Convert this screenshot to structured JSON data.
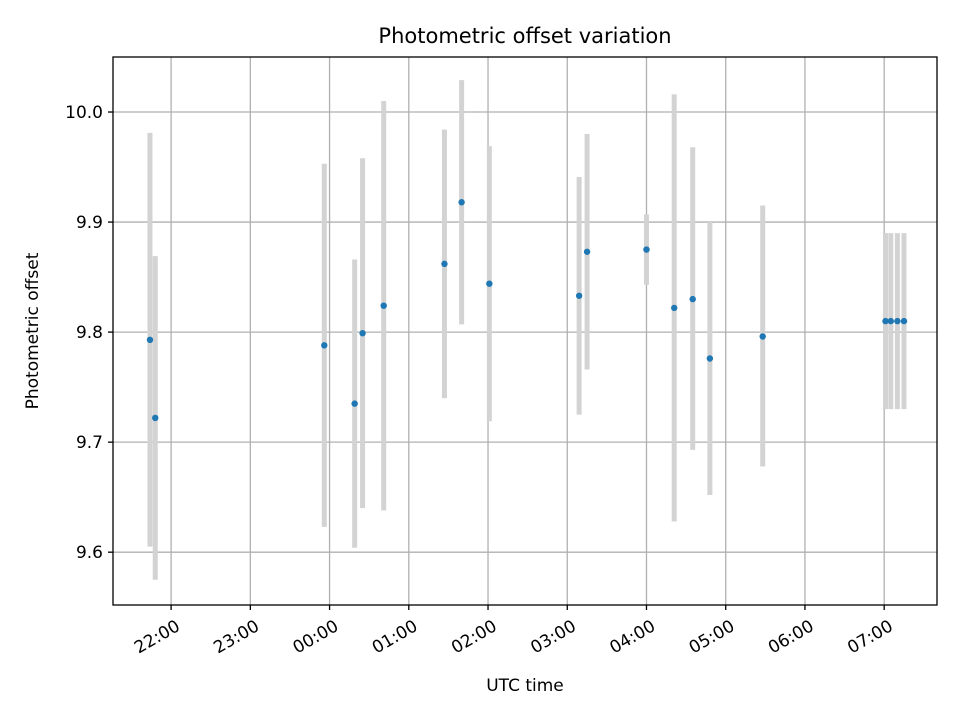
{
  "chart_data": {
    "type": "scatter",
    "title": "Photometric offset variation",
    "xlabel": "UTC time",
    "ylabel": "Photometric offset",
    "xlim": [
      "21:16",
      "31:40"
    ],
    "ylim": [
      9.552,
      10.05
    ],
    "grid": true,
    "x_ticks": [
      {
        "x": "22:00",
        "label": "22:00"
      },
      {
        "x": "23:00",
        "label": "23:00"
      },
      {
        "x": "24:00",
        "label": "00:00"
      },
      {
        "x": "25:00",
        "label": "01:00"
      },
      {
        "x": "26:00",
        "label": "02:00"
      },
      {
        "x": "27:00",
        "label": "03:00"
      },
      {
        "x": "28:00",
        "label": "04:00"
      },
      {
        "x": "29:00",
        "label": "05:00"
      },
      {
        "x": "30:00",
        "label": "06:00"
      },
      {
        "x": "31:00",
        "label": "07:00"
      }
    ],
    "y_ticks": [
      {
        "y": 9.6,
        "label": "9.6"
      },
      {
        "y": 9.7,
        "label": "9.7"
      },
      {
        "y": 9.8,
        "label": "9.8"
      },
      {
        "y": 9.9,
        "label": "9.9"
      },
      {
        "y": 10.0,
        "label": "10.0"
      }
    ],
    "marker_color": "#1f77b4",
    "errorbar_color": "#d3d3d3",
    "points": [
      {
        "x": "21:44",
        "y": 9.793,
        "y_low": 9.605,
        "y_high": 9.981
      },
      {
        "x": "21:48",
        "y": 9.722,
        "y_low": 9.575,
        "y_high": 9.869
      },
      {
        "x": "23:56",
        "y": 9.788,
        "y_low": 9.623,
        "y_high": 9.953
      },
      {
        "x": "24:19",
        "y": 9.735,
        "y_low": 9.604,
        "y_high": 9.866
      },
      {
        "x": "24:25",
        "y": 9.799,
        "y_low": 9.64,
        "y_high": 9.958
      },
      {
        "x": "24:41",
        "y": 9.824,
        "y_low": 9.638,
        "y_high": 10.01
      },
      {
        "x": "25:27",
        "y": 9.862,
        "y_low": 9.74,
        "y_high": 9.984
      },
      {
        "x": "25:40",
        "y": 9.918,
        "y_low": 9.807,
        "y_high": 10.029
      },
      {
        "x": "26:01",
        "y": 9.844,
        "y_low": 9.719,
        "y_high": 9.969
      },
      {
        "x": "27:09",
        "y": 9.833,
        "y_low": 9.725,
        "y_high": 9.941
      },
      {
        "x": "27:15",
        "y": 9.873,
        "y_low": 9.766,
        "y_high": 9.98
      },
      {
        "x": "28:00",
        "y": 9.875,
        "y_low": 9.843,
        "y_high": 9.907
      },
      {
        "x": "28:21",
        "y": 9.822,
        "y_low": 9.628,
        "y_high": 10.016
      },
      {
        "x": "28:35",
        "y": 9.83,
        "y_low": 9.693,
        "y_high": 9.968
      },
      {
        "x": "28:48",
        "y": 9.776,
        "y_low": 9.652,
        "y_high": 9.9
      },
      {
        "x": "29:28",
        "y": 9.796,
        "y_low": 9.678,
        "y_high": 9.915
      },
      {
        "x": "31:01",
        "y": 9.81,
        "y_low": 9.73,
        "y_high": 9.89
      },
      {
        "x": "31:05",
        "y": 9.81,
        "y_low": 9.73,
        "y_high": 9.89
      },
      {
        "x": "31:10",
        "y": 9.81,
        "y_low": 9.73,
        "y_high": 9.89
      },
      {
        "x": "31:15",
        "y": 9.81,
        "y_low": 9.73,
        "y_high": 9.89
      }
    ]
  }
}
